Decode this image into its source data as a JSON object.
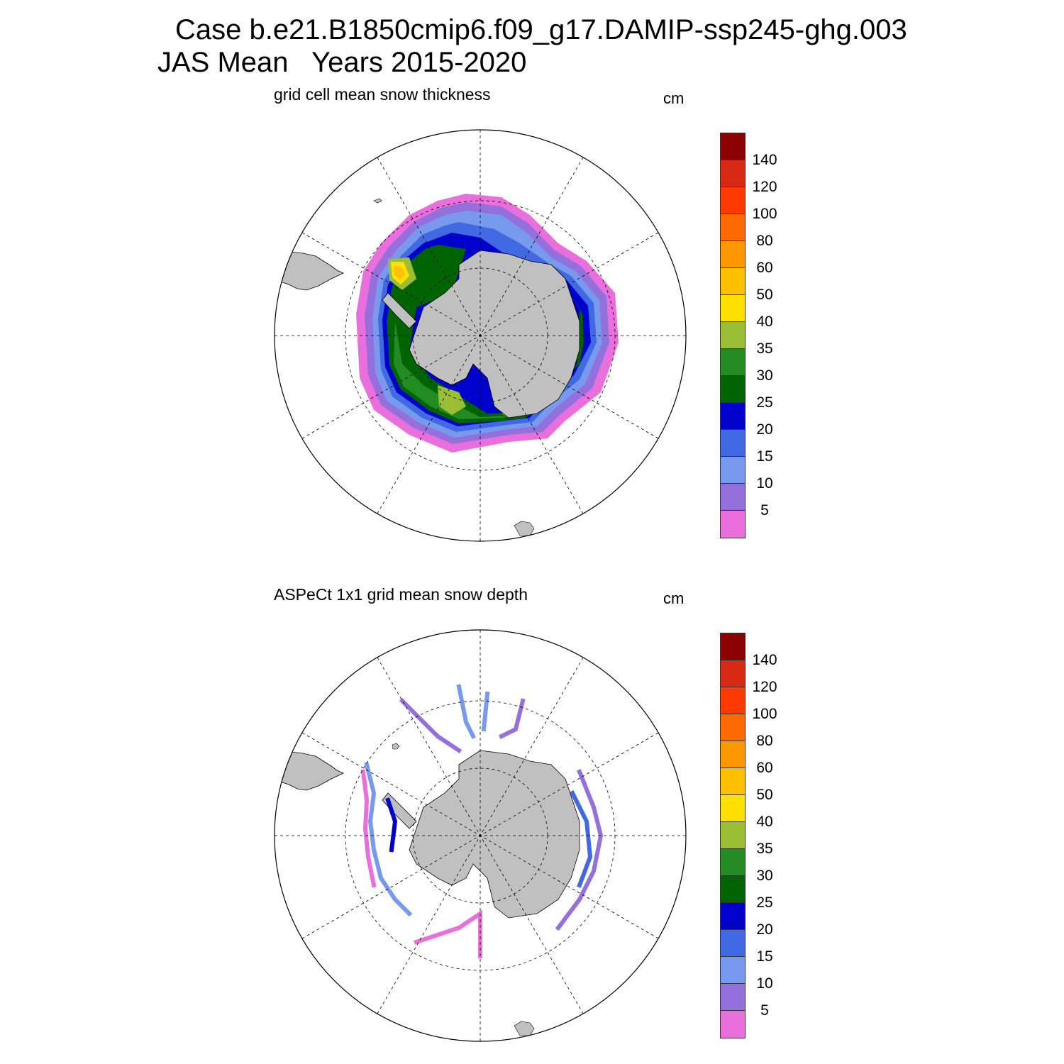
{
  "header": {
    "line1": "Case b.e21.B1850cmip6.f09_g17.DAMIP-ssp245-ghg.003",
    "line2": "JAS Mean   Years 2015-2020"
  },
  "panels": [
    {
      "title": "grid cell mean snow thickness",
      "units": "cm",
      "field": "model"
    },
    {
      "title": "ASPeCt 1x1 grid mean snow depth",
      "units": "cm",
      "field": "observations"
    }
  ],
  "colorbar": {
    "tick_labels": [
      "140",
      "120",
      "100",
      "80",
      "60",
      "50",
      "40",
      "35",
      "30",
      "25",
      "20",
      "15",
      "10",
      "5"
    ],
    "colors_top_to_bottom": [
      "#8b0000",
      "#d62a14",
      "#ff3a00",
      "#ff6a00",
      "#ff9700",
      "#ffc000",
      "#ffe000",
      "#9abf35",
      "#228b22",
      "#006400",
      "#0000cd",
      "#4169e1",
      "#7799ee",
      "#9370db",
      "#e86fdc"
    ]
  },
  "chart_data": [
    {
      "type": "heatmap",
      "title": "grid cell mean snow thickness",
      "units": "cm",
      "projection": "south-polar-stereographic",
      "levels": [
        5,
        10,
        15,
        20,
        25,
        30,
        35,
        40,
        50,
        60,
        80,
        100,
        120,
        140
      ],
      "colors": [
        "#e86fdc",
        "#9370db",
        "#7799ee",
        "#4169e1",
        "#0000cd",
        "#006400",
        "#228b22",
        "#9abf35",
        "#ffe000",
        "#ffc000",
        "#ff9700",
        "#ff6a00",
        "#ff3a00",
        "#d62a14",
        "#8b0000"
      ],
      "grid": true,
      "legend": "right"
    },
    {
      "type": "heatmap",
      "title": "ASPeCt 1x1 grid mean snow depth",
      "units": "cm",
      "projection": "south-polar-stereographic",
      "levels": [
        5,
        10,
        15,
        20,
        25,
        30,
        35,
        40,
        50,
        60,
        80,
        100,
        120,
        140
      ],
      "colors": [
        "#e86fdc",
        "#9370db",
        "#7799ee",
        "#4169e1",
        "#0000cd",
        "#006400",
        "#228b22",
        "#9abf35",
        "#ffe000",
        "#ffc000",
        "#ff9700",
        "#ff6a00",
        "#ff3a00",
        "#d62a14",
        "#8b0000"
      ],
      "grid": true,
      "legend": "right"
    }
  ]
}
